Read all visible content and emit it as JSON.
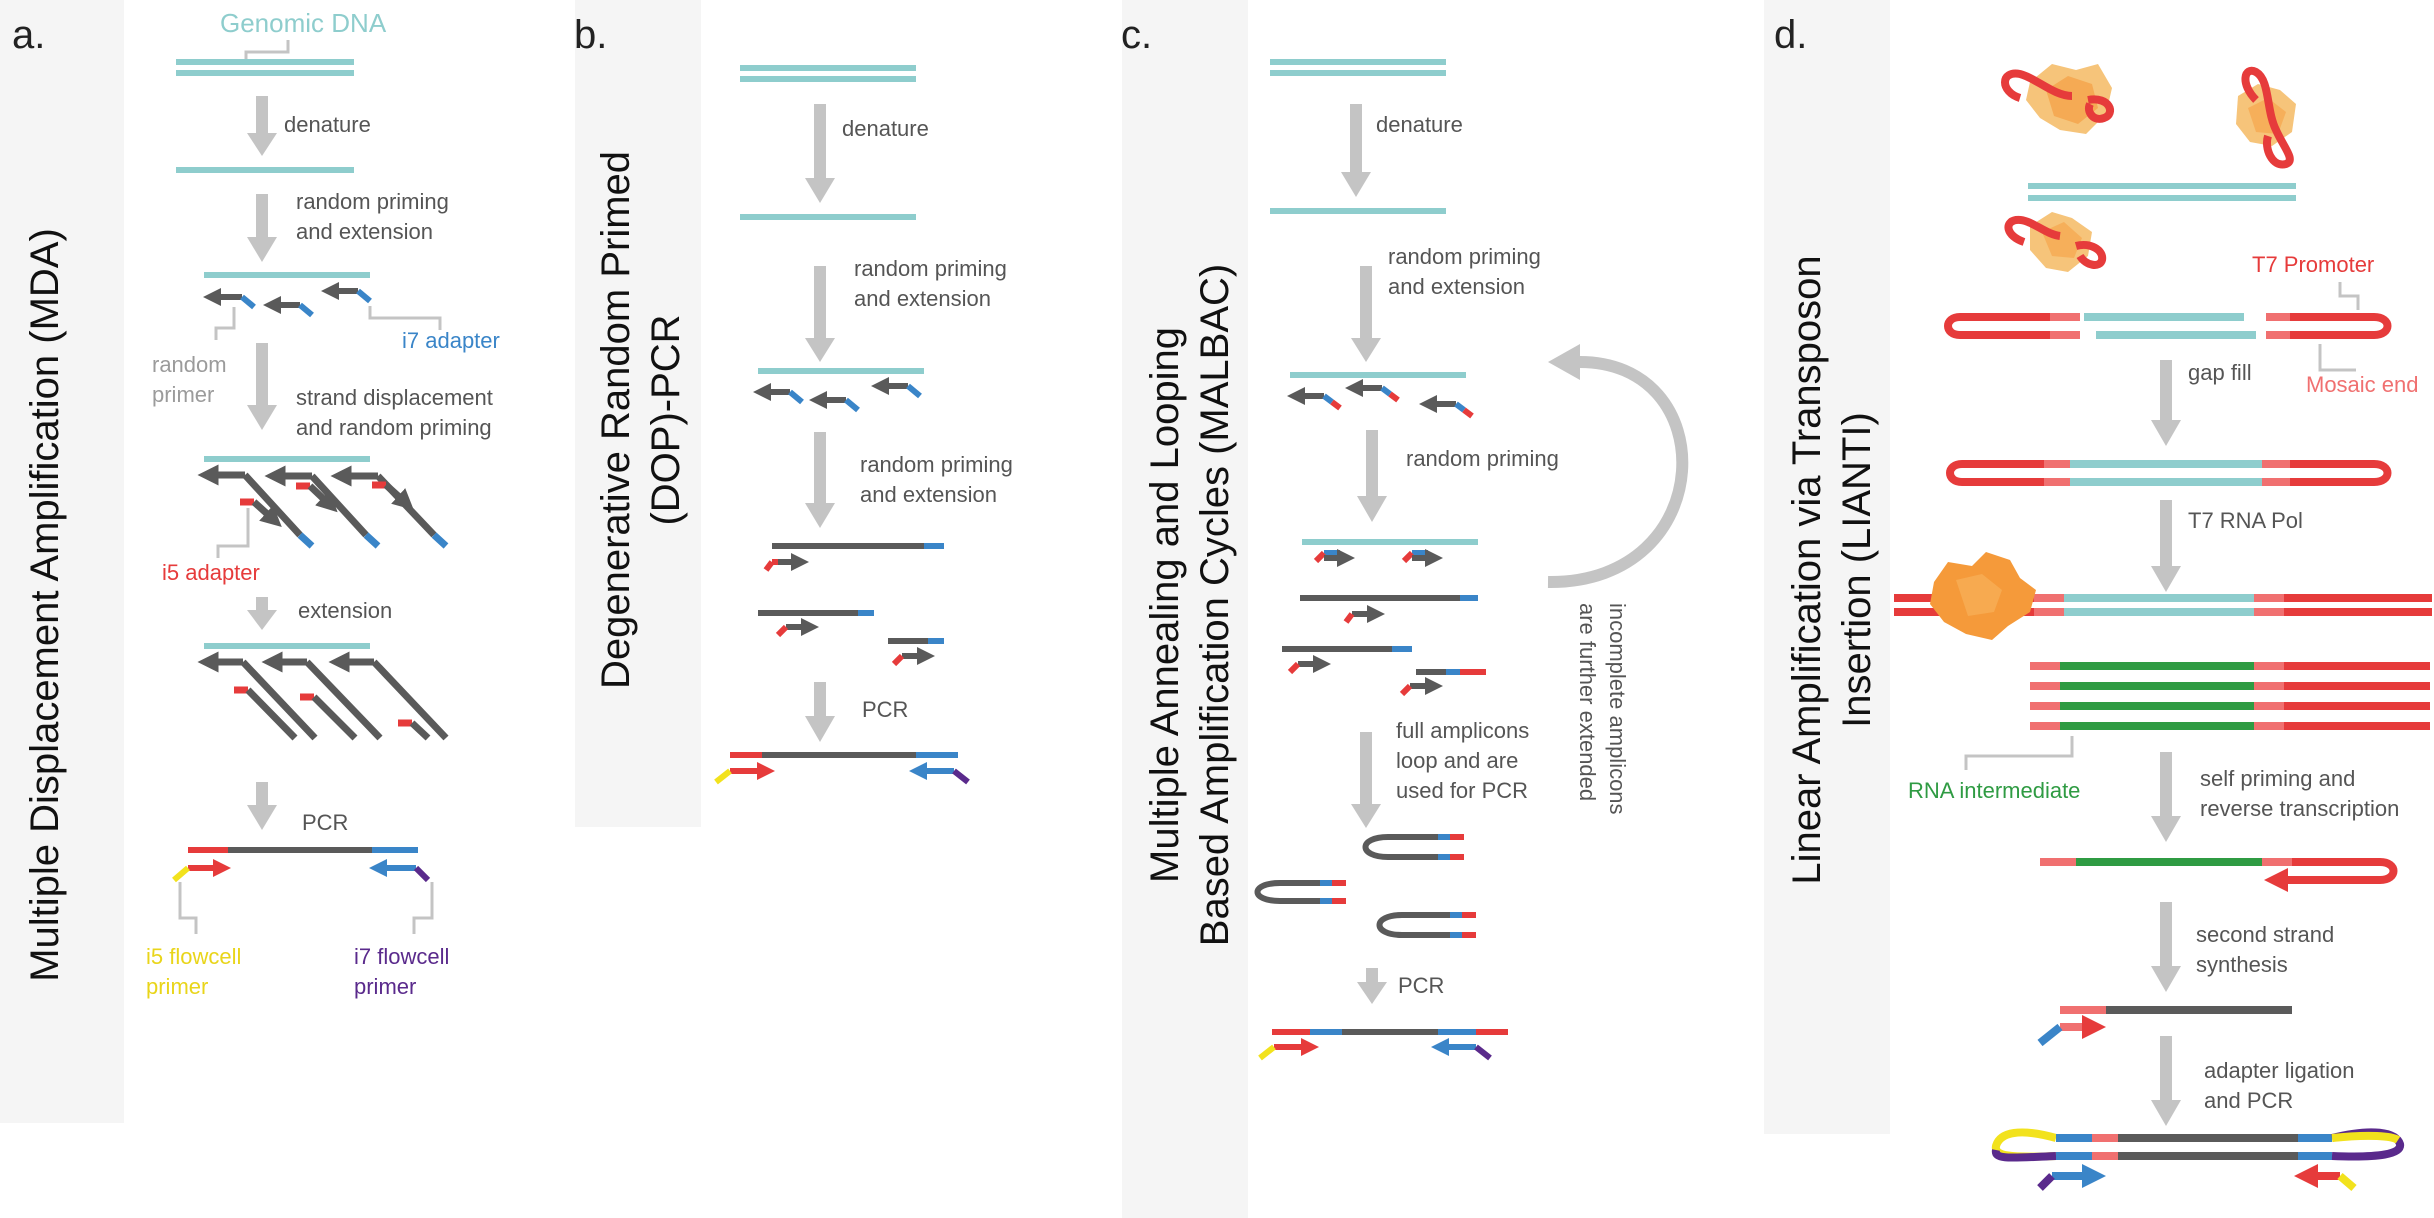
{
  "colors": {
    "genomic": "#8ecdcd",
    "product": "#5a5a5a",
    "arrow": "#c4c4c4",
    "adapter_i7": "#3a85c8",
    "adapter_i5": "#e63b3b",
    "flowcell_i5": "#f2e21d",
    "flowcell_i7": "#5a2a8c",
    "rna": "#2f9b43",
    "enzyme": "#f59a3a",
    "panel_band": "#f5f5f5"
  },
  "icons": [
    "process-arrow-icon",
    "curved-return-arrow-icon",
    "transposome-icon",
    "t7-rna-polymerase-icon"
  ],
  "panel_a": {
    "letter": "a.",
    "title": "Multiple Displacement Amplification (MDA)",
    "label_genomic": "Genomic DNA",
    "step_denature": "denature",
    "step_priming": [
      "random priming",
      "and extension"
    ],
    "label_random_primer": [
      "random",
      "primer"
    ],
    "label_i7_adapter": "i7 adapter",
    "step_strand": [
      "strand displacement",
      "and random priming"
    ],
    "label_i5_adapter": "i5 adapter",
    "step_extension": "extension",
    "step_pcr": "PCR",
    "label_i5_flowcell": [
      "i5 flowcell",
      "primer"
    ],
    "label_i7_flowcell": [
      "i7 flowcell",
      "primer"
    ]
  },
  "panel_b": {
    "letter": "b.",
    "title": [
      "Degenerative Random Primed",
      "(DOP)-PCR"
    ],
    "step_denature": "denature",
    "step_priming": [
      "random priming",
      "and extension"
    ],
    "step_priming2": [
      "random priming",
      "and extension"
    ],
    "step_pcr": "PCR"
  },
  "panel_c": {
    "letter": "c.",
    "title": [
      "Multiple Annealing and Looping",
      "Based Amplification Cycles (MALBAC)"
    ],
    "step_denature": "denature",
    "step_priming": [
      "random priming",
      "and extension"
    ],
    "step_random": "random priming",
    "step_loop": [
      "full amplicons",
      "loop and are",
      "used for PCR"
    ],
    "note_incomplete": [
      "incomplete amplicons",
      "are further extended"
    ],
    "step_pcr": "PCR"
  },
  "panel_d": {
    "letter": "d.",
    "title": [
      "Linear Amplification via Transposon",
      "Insertion (LIANTI)"
    ],
    "label_t7_promoter": "T7 Promoter",
    "step_gap_fill": "gap fill",
    "label_mosaic_end": "Mosaic end",
    "step_t7": "T7 RNA Pol",
    "label_rna": "RNA intermediate",
    "step_self_priming": [
      "self priming and",
      "reverse transcription"
    ],
    "step_second": [
      "second strand",
      "synthesis"
    ],
    "step_adapter": [
      "adapter ligation",
      "and PCR"
    ]
  }
}
